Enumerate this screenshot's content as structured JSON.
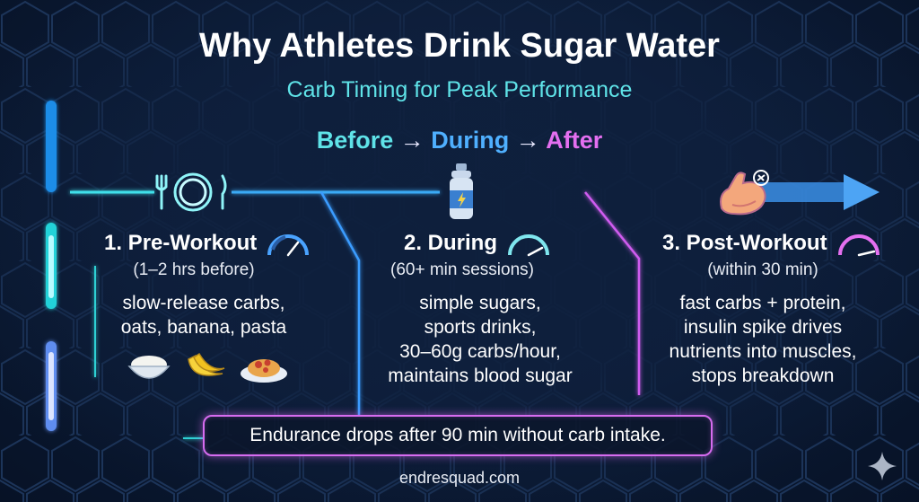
{
  "header": {
    "title": "Why Athletes Drink Sugar Water",
    "subtitle": "Carb Timing for Peak Performance"
  },
  "flow": {
    "before": "Before",
    "during": "During",
    "after": "After",
    "arrow": "→"
  },
  "phases": [
    {
      "title": "1. Pre-Workout",
      "subtitle": "(1–2 hrs before)",
      "body": [
        "slow-release carbs,",
        "oats, banana, pasta"
      ],
      "icon": "plate-fork-knife-icon",
      "color": "#5fe3e8",
      "foods": [
        "rice-bowl-icon",
        "banana-icon",
        "pasta-icon"
      ]
    },
    {
      "title": "2. During",
      "subtitle": "(60+ min sessions)",
      "body": [
        "simple sugars,",
        "sports drinks,",
        "30–60g carbs/hour,",
        "maintains blood sugar"
      ],
      "icon": "sports-bottle-icon",
      "color": "#4fb0ff"
    },
    {
      "title": "3. Post-Workout",
      "subtitle": "(within 30 min)",
      "body": [
        "fast carbs + protein,",
        "insulin spike drives",
        "nutrients into muscles,",
        "stops breakdown"
      ],
      "icon": "flexed-bicep-icon",
      "color": "#e46ff0"
    }
  ],
  "callout": "Endurance drops after 90 min without carb intake.",
  "footer": "endresquad.com"
}
